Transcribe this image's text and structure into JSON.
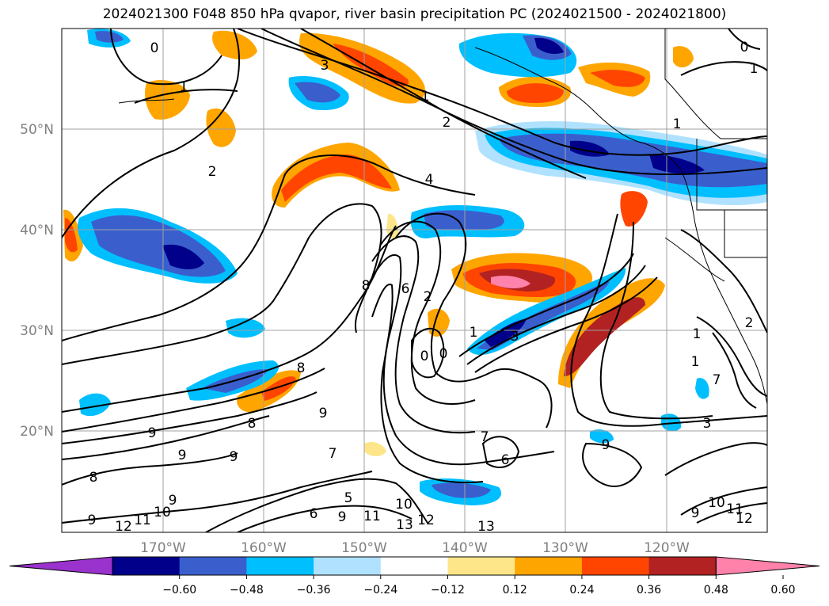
{
  "title": "2024021300 F048 850 hPa qvapor, river basin precipitation PC (2024021500 - 2024021800)",
  "map": {
    "lat_labels": [
      "50°N",
      "40°N",
      "30°N",
      "20°N"
    ],
    "lon_labels": [
      "170°W",
      "160°W",
      "150°W",
      "140°W",
      "130°W",
      "120°W"
    ],
    "contour_labels": [
      "0",
      "1",
      "2",
      "3",
      "4",
      "5",
      "6",
      "7",
      "8",
      "9",
      "10",
      "11",
      "12",
      "13"
    ]
  },
  "colorbar": {
    "ticks": [
      "−0.60",
      "−0.48",
      "−0.36",
      "−0.24",
      "−0.12",
      "0.12",
      "0.24",
      "0.36",
      "0.48",
      "0.60"
    ],
    "colors": [
      "#9a32cd",
      "#00008b",
      "#3a5fcd",
      "#00bfff",
      "#b0e2ff",
      "#ffffff",
      "#fde68a",
      "#ffa500",
      "#ff4500",
      "#b22222",
      "#ff82ab"
    ]
  }
}
